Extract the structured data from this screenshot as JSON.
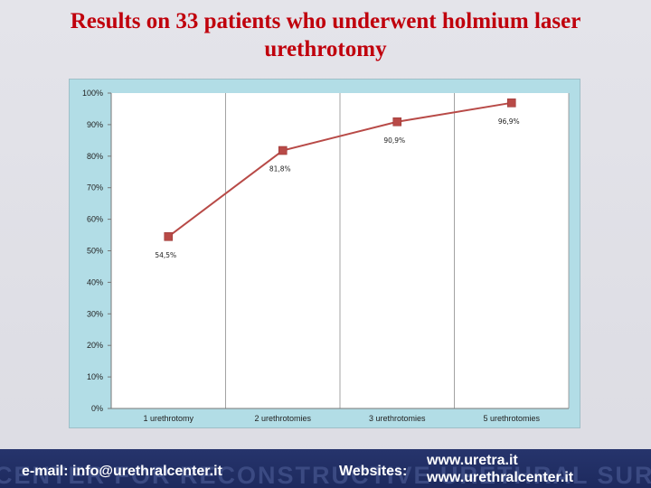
{
  "title": "Results on 33 patients who underwent holmium laser urethrotomy",
  "colors": {
    "title": "#c0000c",
    "series": "#b84a47",
    "chart_background": "#b2dde6",
    "footer_background": "#26346c"
  },
  "chart_data": {
    "type": "line",
    "title": "",
    "xlabel": "",
    "ylabel": "",
    "categories": [
      "1 urethrotomy",
      "2 urethrotomies",
      "3 urethrotomies",
      "5 urethrotomies"
    ],
    "series": [
      {
        "values": [
          54.5,
          81.8,
          90.9,
          96.9
        ],
        "labels": [
          "54,5%",
          "81,8%",
          "90,9%",
          "96,9%"
        ],
        "marker": "square",
        "color": "#b84a47"
      }
    ],
    "ylim": [
      0,
      100
    ],
    "yticks": [
      "0%",
      "10%",
      "20%",
      "30%",
      "40%",
      "50%",
      "60%",
      "70%",
      "80%",
      "90%",
      "100%"
    ],
    "grid": "vertical",
    "legend": "none"
  },
  "footer": {
    "watermark": "CENTER FOR RECONSTRUCTIVE URETHRAL SURGERY",
    "email": "e-mail: info@urethralcenter.it",
    "websites_label": "Websites:",
    "site_1": "www.uretra.it",
    "site_2": "www.urethralcenter.it"
  }
}
